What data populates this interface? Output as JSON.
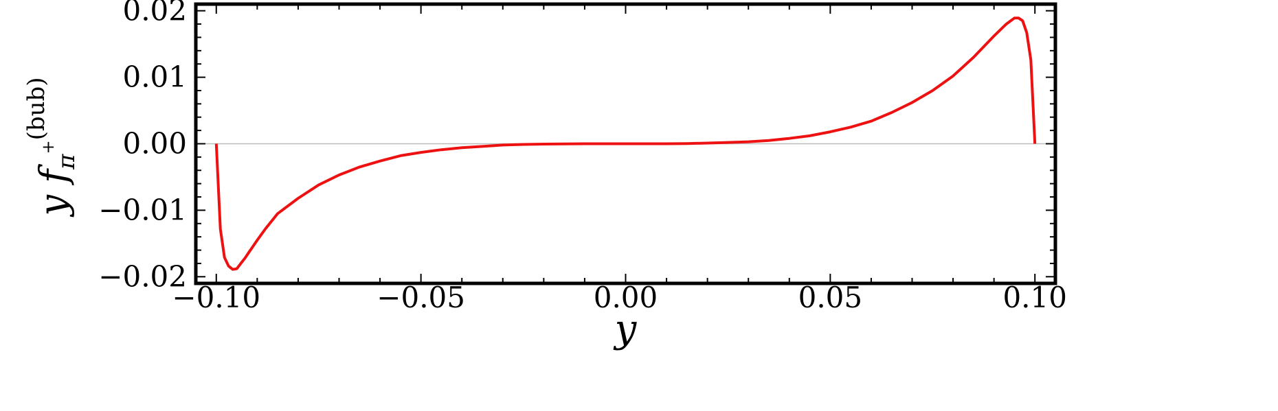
{
  "chart_data": {
    "type": "line",
    "title": "",
    "xlabel": "y",
    "ylabel": "y f",
    "ylabel_superscript": "(bub)",
    "ylabel_subscript": "π",
    "ylabel_sub_superscript": "+",
    "xlim": [
      -0.105,
      0.105
    ],
    "ylim": [
      -0.021,
      0.021
    ],
    "xticks": [
      -0.1,
      -0.05,
      0.0,
      0.05,
      0.1
    ],
    "xtick_labels": [
      "−0.10",
      "−0.05",
      "0.00",
      "0.05",
      "0.10"
    ],
    "yticks": [
      -0.02,
      -0.01,
      0.0,
      0.01,
      0.02
    ],
    "ytick_labels": [
      "−0.02",
      "−0.01",
      "0.00",
      "0.01",
      "0.02"
    ],
    "grid": false,
    "zero_line": true,
    "colors": {
      "series": "#ee1111",
      "frame": "#000000",
      "zero_line": "#bbbbbb"
    },
    "series": [
      {
        "x": [
          -0.1,
          -0.099,
          -0.098,
          -0.097,
          -0.096,
          -0.095,
          -0.094,
          -0.093,
          -0.092,
          -0.091,
          -0.09,
          -0.088,
          -0.085,
          -0.08,
          -0.075,
          -0.07,
          -0.065,
          -0.06,
          -0.055,
          -0.05,
          -0.045,
          -0.04,
          -0.035,
          -0.03,
          -0.025,
          -0.02,
          -0.015,
          -0.01,
          -0.005,
          0.0,
          0.005,
          0.01,
          0.015,
          0.02,
          0.025,
          0.03,
          0.035,
          0.04,
          0.045,
          0.05,
          0.055,
          0.06,
          0.065,
          0.07,
          0.075,
          0.08,
          0.085,
          0.09,
          0.093,
          0.095,
          0.096,
          0.097,
          0.098,
          0.099,
          0.1
        ],
        "y": [
          0.0,
          -0.0128,
          -0.0171,
          -0.0184,
          -0.0189,
          -0.0188,
          -0.018,
          -0.0172,
          -0.0163,
          -0.0154,
          -0.0145,
          -0.0128,
          -0.0105,
          -0.0082,
          -0.0062,
          -0.0047,
          -0.0035,
          -0.0026,
          -0.0018,
          -0.0013,
          -0.0009,
          -0.0006,
          -0.0004,
          -0.0002,
          -0.0001,
          -5e-05,
          -2e-05,
          0.0,
          0.0,
          0.0,
          0.0,
          0.0,
          3e-05,
          0.0001,
          0.0002,
          0.0003,
          0.0005,
          0.0008,
          0.0012,
          0.0018,
          0.0025,
          0.0034,
          0.0047,
          0.0062,
          0.008,
          0.0102,
          0.013,
          0.0162,
          0.018,
          0.0189,
          0.0189,
          0.0185,
          0.0167,
          0.0126,
          0.0
        ]
      }
    ]
  }
}
